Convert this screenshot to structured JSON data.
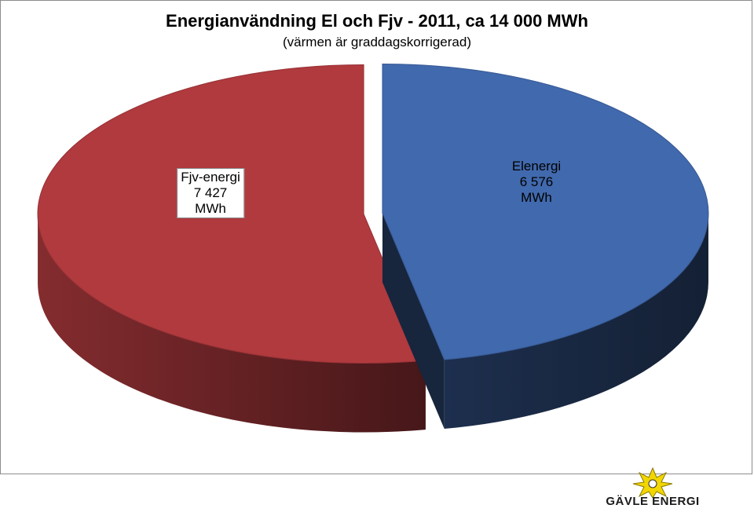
{
  "chart_data": {
    "type": "pie",
    "title": "Energianvändning El och Fjv - 2011, ca 14 000 MWh",
    "subtitle": "(värmen är graddagskorrigerad)",
    "categories": [
      "Elenergi",
      "Fjv-energi"
    ],
    "values": [
      6576,
      7427
    ],
    "value_labels": [
      "6 576 MWh",
      "7 427 MWh"
    ],
    "colors": [
      "#4169ad",
      "#b03a3e"
    ]
  },
  "logo": "GÄVLE ENERGI"
}
